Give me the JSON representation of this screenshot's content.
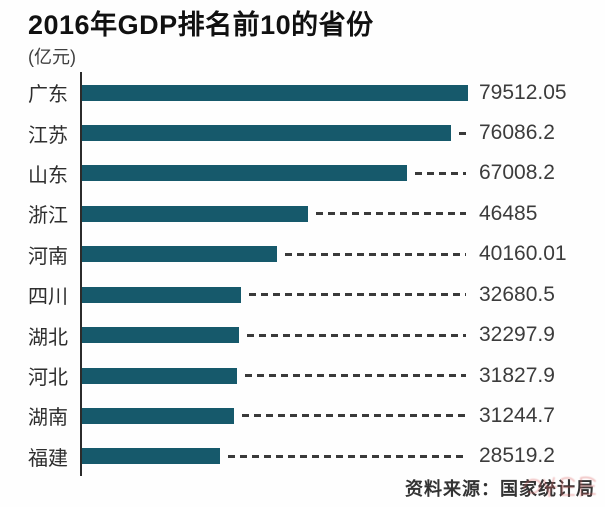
{
  "title": "2016年GDP排名前10的省份",
  "unit_label": "(亿元)",
  "source": "资料来源：国家统计局",
  "chart_data": {
    "type": "bar",
    "orientation": "horizontal",
    "title": "2016年GDP排名前10的省份",
    "unit": "亿元",
    "categories": [
      "广东",
      "江苏",
      "山东",
      "浙江",
      "河南",
      "四川",
      "湖北",
      "河北",
      "湖南",
      "福建"
    ],
    "values": [
      79512.05,
      76086.2,
      67008.2,
      46485,
      40160.01,
      32680.5,
      32297.9,
      31827.9,
      31244.7,
      28519.2
    ],
    "value_labels": [
      "79512.05",
      "76086.2",
      "67008.2",
      "46485",
      "40160.01",
      "32680.5",
      "32297.9",
      "31827.9",
      "31244.7",
      "28519.2"
    ],
    "xlim": [
      0,
      79512.05
    ],
    "grid": false,
    "legend": false,
    "source_note": "资料来源：国家统计局"
  },
  "colors": {
    "bar": "#16596B",
    "axis": "#2B2B2B",
    "dash": "#3A3A3A",
    "category_text": "#2E2E2E",
    "value_text": "#3C3C3C",
    "title_text": "#111111",
    "background": "#FEFEFE",
    "watermark": "#D95F5F"
  }
}
